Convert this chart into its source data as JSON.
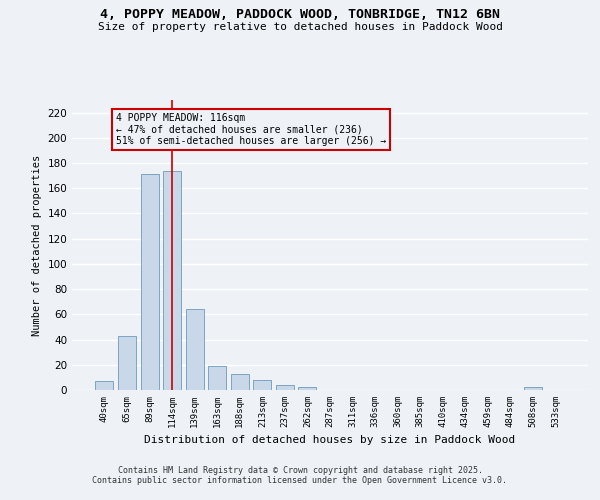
{
  "title_line1": "4, POPPY MEADOW, PADDOCK WOOD, TONBRIDGE, TN12 6BN",
  "title_line2": "Size of property relative to detached houses in Paddock Wood",
  "xlabel": "Distribution of detached houses by size in Paddock Wood",
  "ylabel": "Number of detached properties",
  "categories": [
    "40sqm",
    "65sqm",
    "89sqm",
    "114sqm",
    "139sqm",
    "163sqm",
    "188sqm",
    "213sqm",
    "237sqm",
    "262sqm",
    "287sqm",
    "311sqm",
    "336sqm",
    "360sqm",
    "385sqm",
    "410sqm",
    "434sqm",
    "459sqm",
    "484sqm",
    "508sqm",
    "533sqm"
  ],
  "values": [
    7,
    43,
    171,
    174,
    64,
    19,
    13,
    8,
    4,
    2,
    0,
    0,
    0,
    0,
    0,
    0,
    0,
    0,
    0,
    2,
    0
  ],
  "bar_color": "#c8d8e8",
  "bar_edge_color": "#5a8ab0",
  "vline_x": 3,
  "vline_color": "#cc0000",
  "annotation_text": "4 POPPY MEADOW: 116sqm\n← 47% of detached houses are smaller (236)\n51% of semi-detached houses are larger (256) →",
  "annotation_box_color": "#cc0000",
  "annotation_text_color": "#000000",
  "ylim": [
    0,
    230
  ],
  "yticks": [
    0,
    20,
    40,
    60,
    80,
    100,
    120,
    140,
    160,
    180,
    200,
    220
  ],
  "background_color": "#eef2f7",
  "grid_color": "#ffffff",
  "footer_line1": "Contains HM Land Registry data © Crown copyright and database right 2025.",
  "footer_line2": "Contains public sector information licensed under the Open Government Licence v3.0."
}
